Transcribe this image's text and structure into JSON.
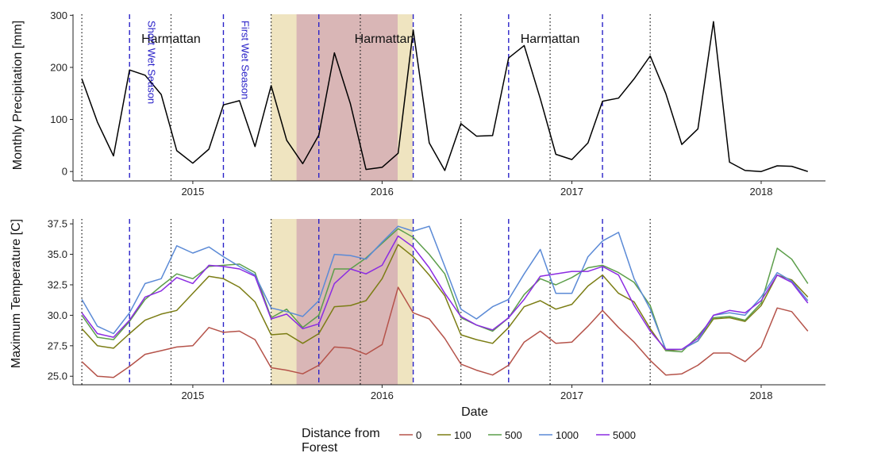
{
  "chart_data": [
    {
      "type": "line",
      "ylabel": "Monthly Precipitation [mm]",
      "xlabel": "",
      "ylim": [
        -18,
        302
      ],
      "yticks": [
        0,
        100,
        200,
        300
      ],
      "grid": false,
      "series": [
        {
          "color": "#000000",
          "points": [
            [
              "2014-06-01",
              178
            ],
            [
              "2014-07-01",
              95
            ],
            [
              "2014-08-01",
              30
            ],
            [
              "2014-09-01",
              195
            ],
            [
              "2014-10-01",
              185
            ],
            [
              "2014-11-01",
              148
            ],
            [
              "2014-12-01",
              40
            ],
            [
              "2015-01-01",
              16
            ],
            [
              "2015-02-01",
              43
            ],
            [
              "2015-03-01",
              128
            ],
            [
              "2015-04-01",
              136
            ],
            [
              "2015-05-01",
              48
            ],
            [
              "2015-06-01",
              165
            ],
            [
              "2015-07-01",
              60
            ],
            [
              "2015-08-01",
              15
            ],
            [
              "2015-09-01",
              70
            ],
            [
              "2015-10-01",
              228
            ],
            [
              "2015-11-01",
              130
            ],
            [
              "2015-12-01",
              4
            ],
            [
              "2016-01-01",
              8
            ],
            [
              "2016-02-01",
              35
            ],
            [
              "2016-03-01",
              272
            ],
            [
              "2016-04-01",
              55
            ],
            [
              "2016-05-01",
              2
            ],
            [
              "2016-06-01",
              92
            ],
            [
              "2016-07-01",
              68
            ],
            [
              "2016-08-01",
              69
            ],
            [
              "2016-09-01",
              218
            ],
            [
              "2016-10-01",
              242
            ],
            [
              "2016-11-01",
              140
            ],
            [
              "2016-12-01",
              33
            ],
            [
              "2017-01-01",
              23
            ],
            [
              "2017-02-01",
              55
            ],
            [
              "2017-03-01",
              135
            ],
            [
              "2017-04-01",
              141
            ],
            [
              "2017-05-01",
              178
            ],
            [
              "2017-06-01",
              222
            ],
            [
              "2017-07-01",
              150
            ],
            [
              "2017-08-01",
              52
            ],
            [
              "2017-09-01",
              82
            ],
            [
              "2017-10-01",
              288
            ],
            [
              "2017-11-01",
              18
            ],
            [
              "2017-12-01",
              2
            ],
            [
              "2018-01-01",
              0
            ],
            [
              "2018-02-01",
              11
            ],
            [
              "2018-03-01",
              10
            ],
            [
              "2018-04-01",
              0
            ]
          ]
        }
      ],
      "annotations": [
        {
          "text": "Harmattan",
          "x": "2014-11-20",
          "y": 247,
          "rotated": false,
          "color": "#111111"
        },
        {
          "text": "Harmattan",
          "x": "2016-01-05",
          "y": 247,
          "rotated": false,
          "color": "#111111"
        },
        {
          "text": "Harmattan",
          "x": "2016-11-20",
          "y": 247,
          "rotated": false,
          "color": "#111111"
        },
        {
          "text": "Short Wet Season",
          "x": "2014-09-15",
          "y": 290,
          "rotated": true,
          "color": "#2a22c8"
        },
        {
          "text": "First Wet Season",
          "x": "2015-03-15",
          "y": 290,
          "rotated": true,
          "color": "#2a22c8"
        }
      ]
    },
    {
      "type": "line",
      "ylabel": "Maximum Temperature [C]",
      "xlabel": "Date",
      "ylim": [
        24.3,
        37.9
      ],
      "yticks": [
        25.0,
        27.5,
        30.0,
        32.5,
        35.0,
        37.5
      ],
      "grid": false,
      "legend": {
        "title": "Distance from Forest",
        "placement": "bottom"
      },
      "months": [
        "2014-06-01",
        "2014-07-01",
        "2014-08-01",
        "2014-09-01",
        "2014-10-01",
        "2014-11-01",
        "2014-12-01",
        "2015-01-01",
        "2015-02-01",
        "2015-03-01",
        "2015-04-01",
        "2015-05-01",
        "2015-06-01",
        "2015-07-01",
        "2015-08-01",
        "2015-09-01",
        "2015-10-01",
        "2015-11-01",
        "2015-12-01",
        "2016-01-01",
        "2016-02-01",
        "2016-03-01",
        "2016-04-01",
        "2016-05-01",
        "2016-06-01",
        "2016-07-01",
        "2016-08-01",
        "2016-09-01",
        "2016-10-01",
        "2016-11-01",
        "2016-12-01",
        "2017-01-01",
        "2017-02-01",
        "2017-03-01",
        "2017-04-01",
        "2017-05-01",
        "2017-06-01",
        "2017-07-01",
        "2017-08-01",
        "2017-09-01",
        "2017-10-01",
        "2017-11-01",
        "2017-12-01",
        "2018-01-01",
        "2018-02-01",
        "2018-03-01",
        "2018-04-01"
      ],
      "series": [
        {
          "name": "0",
          "color": "#b5534a",
          "values": [
            26.2,
            25.0,
            24.9,
            25.8,
            26.8,
            27.1,
            27.4,
            27.5,
            29.0,
            28.6,
            28.7,
            28.0,
            25.7,
            25.5,
            25.2,
            25.9,
            27.4,
            27.3,
            26.8,
            27.6,
            32.3,
            30.2,
            29.7,
            28.1,
            26.0,
            25.5,
            25.1,
            25.9,
            27.8,
            28.7,
            27.7,
            27.8,
            29.1,
            30.4,
            29.0,
            27.8,
            26.3,
            25.1,
            25.2,
            25.9,
            26.9,
            26.9,
            26.2,
            27.4,
            30.6,
            30.3,
            28.7
          ]
        },
        {
          "name": "100",
          "color": "#7b7d14",
          "values": [
            28.9,
            27.5,
            27.3,
            28.5,
            29.6,
            30.1,
            30.4,
            31.8,
            33.2,
            33.0,
            32.3,
            31.1,
            28.4,
            28.5,
            27.7,
            28.5,
            30.7,
            30.8,
            31.2,
            33.0,
            35.8,
            34.8,
            33.3,
            31.6,
            28.4,
            28.0,
            27.7,
            29.0,
            30.7,
            31.2,
            30.5,
            30.9,
            32.4,
            33.3,
            31.8,
            31.1,
            28.9,
            27.1,
            27.2,
            27.9,
            29.7,
            29.8,
            29.5,
            30.8,
            33.3,
            32.9,
            31.5
          ]
        },
        {
          "name": "500",
          "color": "#5c9e4a",
          "values": [
            30.0,
            28.2,
            28.0,
            29.5,
            31.3,
            32.4,
            33.4,
            33.0,
            34.0,
            34.1,
            34.2,
            33.5,
            29.8,
            30.5,
            29.0,
            30.0,
            33.8,
            33.8,
            34.7,
            35.9,
            37.1,
            36.4,
            35.0,
            33.4,
            29.8,
            29.2,
            28.7,
            29.8,
            31.7,
            33.0,
            32.5,
            33.1,
            33.9,
            34.1,
            33.5,
            32.7,
            30.8,
            27.1,
            27.0,
            28.3,
            29.8,
            29.9,
            29.6,
            31.0,
            35.5,
            34.6,
            32.6
          ]
        },
        {
          "name": "1000",
          "color": "#5b8ad6",
          "values": [
            31.3,
            29.1,
            28.5,
            30.2,
            32.6,
            33.0,
            35.7,
            35.1,
            35.6,
            34.8,
            34.0,
            33.3,
            30.6,
            30.3,
            29.9,
            31.2,
            35.0,
            34.9,
            34.6,
            36.0,
            37.3,
            36.9,
            37.3,
            34.0,
            30.5,
            29.7,
            30.7,
            31.3,
            33.4,
            35.4,
            31.8,
            31.8,
            34.8,
            36.1,
            36.8,
            33.0,
            30.5,
            27.2,
            27.2,
            27.9,
            30.0,
            30.2,
            30.0,
            31.5,
            33.5,
            32.8,
            31.2
          ]
        },
        {
          "name": "5000",
          "color": "#8b2be2",
          "values": [
            30.2,
            28.5,
            28.2,
            29.6,
            31.5,
            32.0,
            33.1,
            32.6,
            34.1,
            34.0,
            33.8,
            33.2,
            29.7,
            30.1,
            28.9,
            29.3,
            32.6,
            33.8,
            33.4,
            34.1,
            36.5,
            35.6,
            33.9,
            31.8,
            29.9,
            29.2,
            28.8,
            29.8,
            31.3,
            33.2,
            33.4,
            33.6,
            33.6,
            34.0,
            33.3,
            30.8,
            28.7,
            27.2,
            27.2,
            28.1,
            30.0,
            30.4,
            30.2,
            31.2,
            33.3,
            32.7,
            31.0
          ]
        }
      ]
    }
  ],
  "shared_x": {
    "type": "date",
    "range": [
      "2014-05-15",
      "2018-05-05"
    ],
    "tick_labels": [
      "2015",
      "2016",
      "2017",
      "2018"
    ],
    "tick_values": [
      "2015-01-01",
      "2016-01-01",
      "2017-01-01",
      "2018-01-01"
    ]
  },
  "shaded_periods": [
    {
      "start": "2015-06-01",
      "end": "2016-02-29",
      "color": "#efe4c0"
    },
    {
      "start": "2015-07-20",
      "end": "2016-01-31",
      "color": "#d9b6b6"
    }
  ],
  "vertical_lines": {
    "dotted": {
      "color": "#222222",
      "dates": [
        "2014-06-01",
        "2014-11-20",
        "2015-06-01",
        "2015-11-20",
        "2016-06-01",
        "2016-11-20",
        "2017-06-01"
      ]
    },
    "dashed": {
      "color": "#2a22c8",
      "dates": [
        "2014-09-01",
        "2015-03-01",
        "2015-09-01",
        "2016-03-01",
        "2016-09-01",
        "2017-03-01"
      ]
    }
  }
}
